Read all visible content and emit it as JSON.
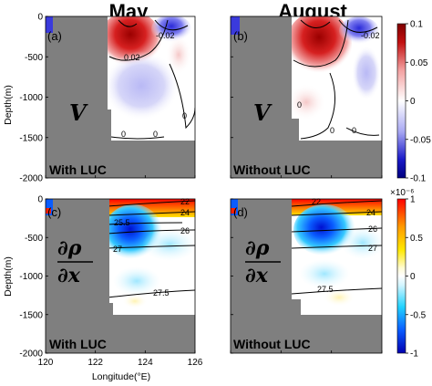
{
  "chart_data": [
    {
      "type": "heatmap",
      "panel": "(a)",
      "title": "May",
      "variable_symbol": "V",
      "annotation": "With LUC",
      "ylabel": "Depth(m)",
      "contour_labels": [
        "-0.02",
        "0.02",
        "0",
        "0",
        "0"
      ],
      "colormap": "blue-white-red",
      "colorbar_ticks": [
        "0.1",
        "0.05",
        "0",
        "-0.05",
        "-0.1"
      ],
      "clim": [
        -0.1,
        0.1
      ]
    },
    {
      "type": "heatmap",
      "panel": "(b)",
      "title": "August",
      "variable_symbol": "V",
      "annotation": "Without LUC",
      "contour_labels": [
        "0",
        "0",
        "0",
        "-0.02"
      ],
      "colormap": "blue-white-red",
      "clim": [
        -0.1,
        0.1
      ]
    },
    {
      "type": "heatmap",
      "panel": "(c)",
      "variable_symbol_top": "∂ρ",
      "variable_symbol_bottom": "∂x",
      "annotation": "With LUC",
      "ylabel": "Depth(m)",
      "contour_labels": [
        "22",
        "24",
        "25.5",
        "26",
        "27",
        "27.5"
      ],
      "colormap": "jet",
      "colorbar_scale": "×10⁻⁶",
      "colorbar_ticks": [
        "1",
        "0.5",
        "0",
        "-0.5",
        "-1"
      ],
      "clim": [
        -1,
        1
      ]
    },
    {
      "type": "heatmap",
      "panel": "(d)",
      "variable_symbol_top": "∂ρ",
      "variable_symbol_bottom": "∂x",
      "annotation": "Without LUC",
      "contour_labels": [
        "22",
        "24",
        "26",
        "27",
        "27.5"
      ],
      "colormap": "jet",
      "clim": [
        -1,
        1
      ]
    }
  ],
  "axes": {
    "x_ticks": [
      120,
      122,
      124,
      126
    ],
    "xlim": [
      120,
      126
    ],
    "xlabel": "Longitude(°E)",
    "y_ticks": [
      0,
      -500,
      -1000,
      -1500,
      -2000
    ],
    "ylim": [
      -2000,
      0
    ],
    "y_tick_labels": [
      "0",
      "-500",
      "-1000",
      "-1500",
      "-2000"
    ],
    "x_tick_labels": [
      "120",
      "122",
      "124",
      "126"
    ]
  },
  "colors": {
    "land": "#7f7f7f",
    "background": "#ffffff"
  }
}
